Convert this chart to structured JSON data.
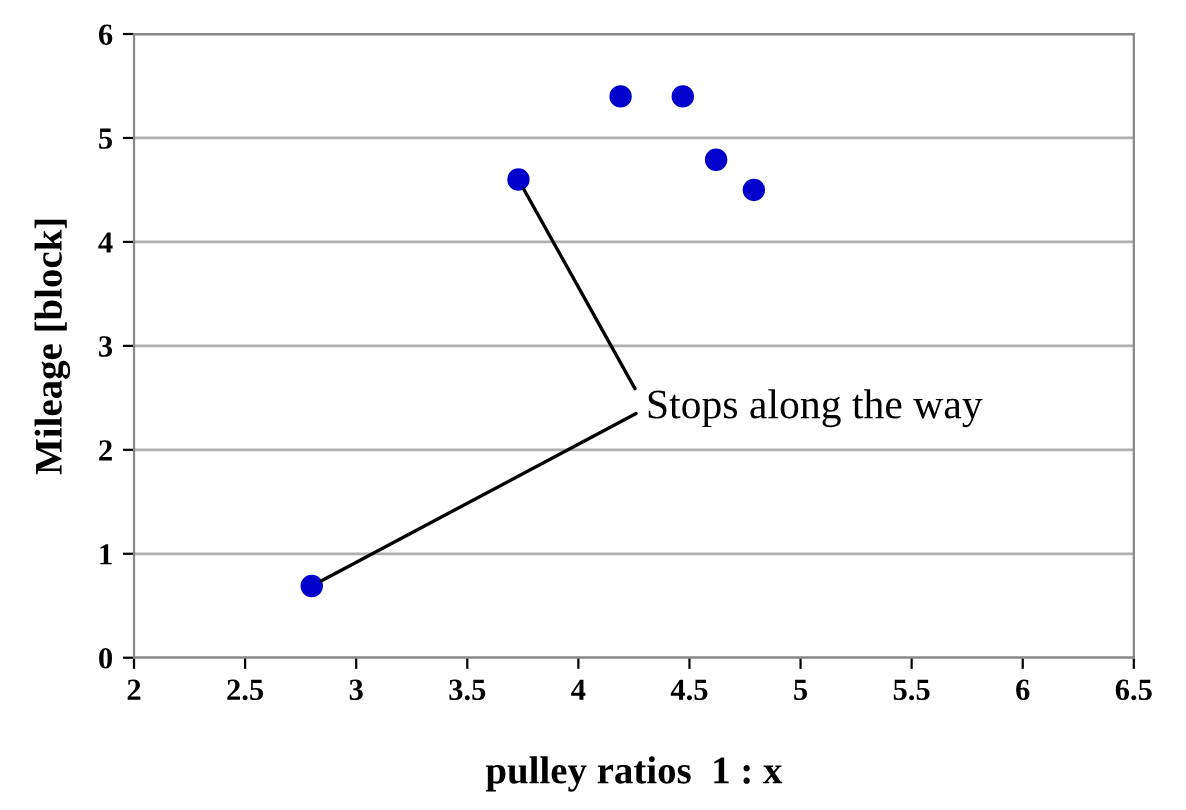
{
  "chart_data": {
    "type": "scatter",
    "xlabel": "pulley ratios  1 : x",
    "ylabel": "Mileage [block]",
    "x": [
      2.8,
      3.73,
      4.19,
      4.47,
      4.62,
      4.79
    ],
    "values": [
      0.69,
      4.6,
      5.4,
      5.4,
      4.79,
      4.5
    ],
    "color": "#0000cc",
    "marker": "circle",
    "xlim": [
      2,
      6.5
    ],
    "xticks": [
      2,
      2.5,
      3,
      3.5,
      4,
      4.5,
      5,
      5.5,
      6,
      6.5
    ],
    "ylim": [
      0,
      6
    ],
    "yticks": [
      0,
      1,
      2,
      3,
      4,
      5,
      6
    ],
    "grid": "y",
    "legend": false,
    "annotations": [
      {
        "text": "Stops along the way",
        "x": 3.73,
        "y": 4.6
      }
    ]
  }
}
